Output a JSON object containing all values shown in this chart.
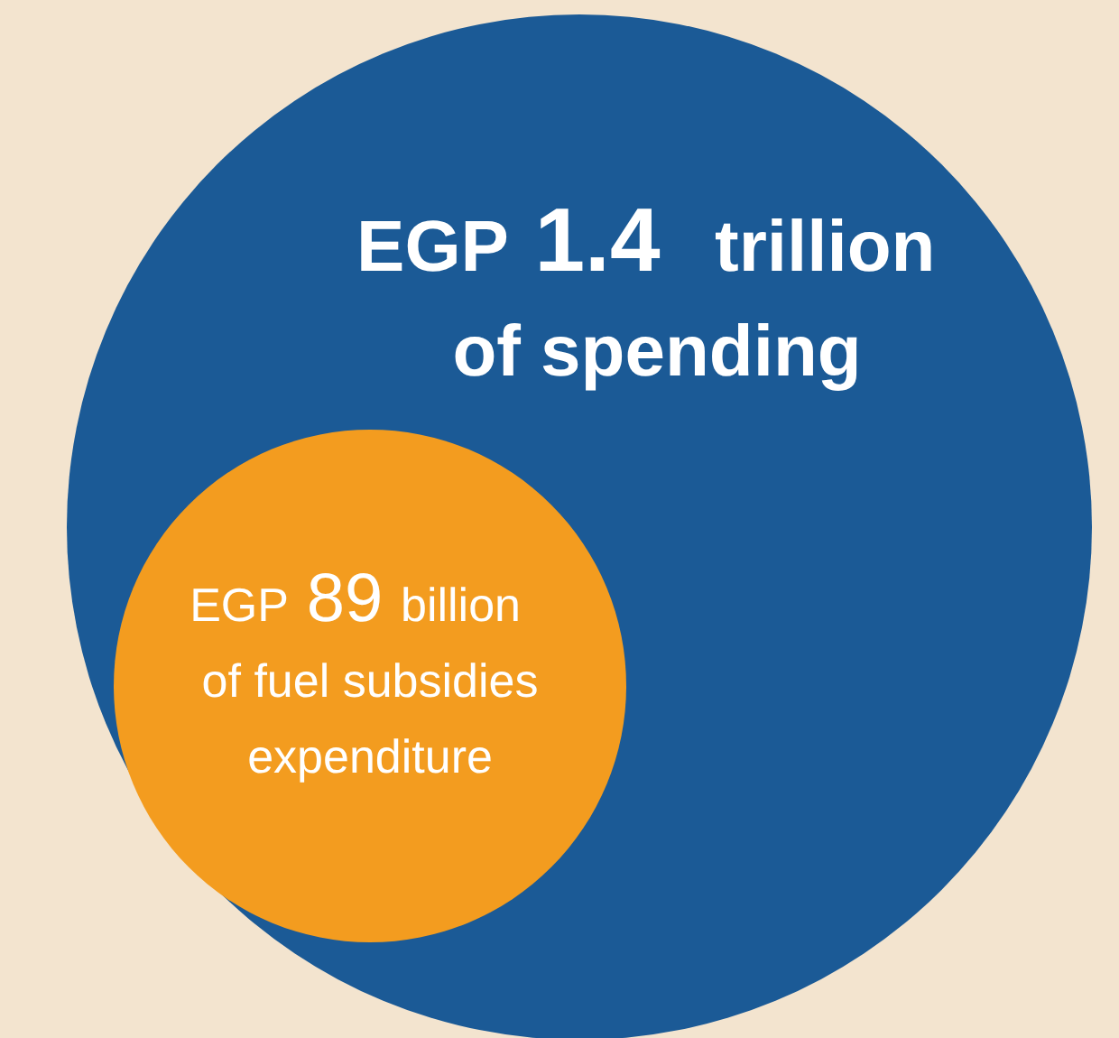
{
  "chart_data": {
    "type": "other",
    "categories": [
      "of spending",
      "of fuel subsidies\nexpenditure"
    ],
    "values": [
      1.4,
      89
    ],
    "data_labels": true,
    "annotations": [
      "EGP",
      "trillion",
      "EGP",
      "billion"
    ],
    "colors": [
      "#1b5a96",
      "#f39c1f"
    ]
  }
}
